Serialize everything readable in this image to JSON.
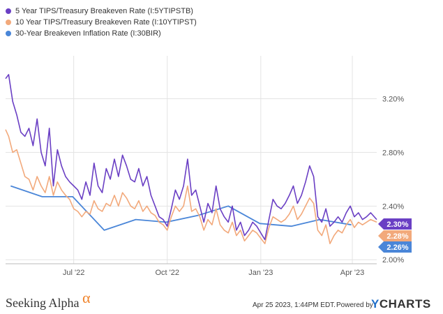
{
  "chart_data": {
    "type": "line",
    "xlabel": "",
    "ylabel": "",
    "x_ticks": [
      "Jul '22",
      "Oct '22",
      "Jan '23",
      "Apr '23"
    ],
    "y_ticks": [
      "2.00%",
      "2.40%",
      "2.80%",
      "3.20%"
    ],
    "ylim": [
      1.97,
      3.52
    ],
    "grid": true,
    "legend_position": "top-left",
    "series": [
      {
        "name": "5 Year TIPS/Treasury Breakeven Rate (I:5YTIPSTB)",
        "color": "#6a3fc4",
        "end_label": "2.30%",
        "x": [
          "2022-04-25",
          "2022-04-28",
          "2022-05-02",
          "2022-05-06",
          "2022-05-10",
          "2022-05-14",
          "2022-05-18",
          "2022-05-22",
          "2022-05-26",
          "2022-05-30",
          "2022-06-03",
          "2022-06-07",
          "2022-06-11",
          "2022-06-15",
          "2022-06-19",
          "2022-06-23",
          "2022-06-27",
          "2022-07-01",
          "2022-07-05",
          "2022-07-09",
          "2022-07-13",
          "2022-07-17",
          "2022-07-21",
          "2022-07-25",
          "2022-07-29",
          "2022-08-02",
          "2022-08-06",
          "2022-08-10",
          "2022-08-14",
          "2022-08-18",
          "2022-08-22",
          "2022-08-26",
          "2022-08-30",
          "2022-09-03",
          "2022-09-07",
          "2022-09-11",
          "2022-09-15",
          "2022-09-19",
          "2022-09-23",
          "2022-09-27",
          "2022-10-01",
          "2022-10-05",
          "2022-10-09",
          "2022-10-13",
          "2022-10-17",
          "2022-10-21",
          "2022-10-25",
          "2022-10-29",
          "2022-11-02",
          "2022-11-06",
          "2022-11-10",
          "2022-11-14",
          "2022-11-18",
          "2022-11-22",
          "2022-11-26",
          "2022-11-30",
          "2022-12-04",
          "2022-12-08",
          "2022-12-12",
          "2022-12-16",
          "2022-12-20",
          "2022-12-24",
          "2022-12-28",
          "2023-01-01",
          "2023-01-05",
          "2023-01-09",
          "2023-01-13",
          "2023-01-17",
          "2023-01-21",
          "2023-01-25",
          "2023-01-29",
          "2023-02-02",
          "2023-02-06",
          "2023-02-10",
          "2023-02-14",
          "2023-02-18",
          "2023-02-22",
          "2023-02-26",
          "2023-03-02",
          "2023-03-06",
          "2023-03-10",
          "2023-03-14",
          "2023-03-18",
          "2023-03-22",
          "2023-03-26",
          "2023-03-30",
          "2023-04-03",
          "2023-04-07",
          "2023-04-11",
          "2023-04-15",
          "2023-04-19",
          "2023-04-25"
        ],
        "y": [
          3.35,
          3.38,
          3.18,
          3.08,
          2.95,
          2.92,
          2.98,
          2.85,
          3.05,
          2.8,
          2.7,
          2.98,
          2.55,
          2.82,
          2.7,
          2.62,
          2.58,
          2.55,
          2.52,
          2.45,
          2.58,
          2.48,
          2.72,
          2.55,
          2.5,
          2.68,
          2.6,
          2.75,
          2.62,
          2.78,
          2.7,
          2.6,
          2.58,
          2.68,
          2.55,
          2.62,
          2.48,
          2.4,
          2.32,
          2.3,
          2.25,
          2.38,
          2.52,
          2.45,
          2.55,
          2.75,
          2.48,
          2.52,
          2.4,
          2.28,
          2.42,
          2.35,
          2.55,
          2.38,
          2.32,
          2.28,
          2.4,
          2.22,
          2.28,
          2.18,
          2.22,
          2.28,
          2.25,
          2.2,
          2.15,
          2.3,
          2.45,
          2.4,
          2.38,
          2.42,
          2.48,
          2.55,
          2.42,
          2.48,
          2.58,
          2.7,
          2.62,
          2.32,
          2.28,
          2.38,
          2.25,
          2.28,
          2.32,
          2.28,
          2.35,
          2.4,
          2.32,
          2.35,
          2.3,
          2.32,
          2.35,
          2.3
        ]
      },
      {
        "name": "10 Year TIPS/Treasury Breakeven Rate (I:10YTIPST)",
        "color": "#f2a97b",
        "end_label": "2.28%",
        "x": [
          "2022-04-25",
          "2022-04-28",
          "2022-05-02",
          "2022-05-06",
          "2022-05-10",
          "2022-05-14",
          "2022-05-18",
          "2022-05-22",
          "2022-05-26",
          "2022-05-30",
          "2022-06-03",
          "2022-06-07",
          "2022-06-11",
          "2022-06-15",
          "2022-06-19",
          "2022-06-23",
          "2022-06-27",
          "2022-07-01",
          "2022-07-05",
          "2022-07-09",
          "2022-07-13",
          "2022-07-17",
          "2022-07-21",
          "2022-07-25",
          "2022-07-29",
          "2022-08-02",
          "2022-08-06",
          "2022-08-10",
          "2022-08-14",
          "2022-08-18",
          "2022-08-22",
          "2022-08-26",
          "2022-08-30",
          "2022-09-03",
          "2022-09-07",
          "2022-09-11",
          "2022-09-15",
          "2022-09-19",
          "2022-09-23",
          "2022-09-27",
          "2022-10-01",
          "2022-10-05",
          "2022-10-09",
          "2022-10-13",
          "2022-10-17",
          "2022-10-21",
          "2022-10-25",
          "2022-10-29",
          "2022-11-02",
          "2022-11-06",
          "2022-11-10",
          "2022-11-14",
          "2022-11-18",
          "2022-11-22",
          "2022-11-26",
          "2022-11-30",
          "2022-12-04",
          "2022-12-08",
          "2022-12-12",
          "2022-12-16",
          "2022-12-20",
          "2022-12-24",
          "2022-12-28",
          "2023-01-01",
          "2023-01-05",
          "2023-01-09",
          "2023-01-13",
          "2023-01-17",
          "2023-01-21",
          "2023-01-25",
          "2023-01-29",
          "2023-02-02",
          "2023-02-06",
          "2023-02-10",
          "2023-02-14",
          "2023-02-18",
          "2023-02-22",
          "2023-02-26",
          "2023-03-02",
          "2023-03-06",
          "2023-03-10",
          "2023-03-14",
          "2023-03-18",
          "2023-03-22",
          "2023-03-26",
          "2023-03-30",
          "2023-04-03",
          "2023-04-07",
          "2023-04-11",
          "2023-04-15",
          "2023-04-19",
          "2023-04-25"
        ],
        "y": [
          2.97,
          2.92,
          2.8,
          2.82,
          2.72,
          2.62,
          2.6,
          2.52,
          2.62,
          2.55,
          2.5,
          2.62,
          2.48,
          2.58,
          2.52,
          2.48,
          2.45,
          2.38,
          2.36,
          2.32,
          2.36,
          2.34,
          2.44,
          2.38,
          2.36,
          2.42,
          2.4,
          2.48,
          2.4,
          2.5,
          2.46,
          2.4,
          2.38,
          2.44,
          2.36,
          2.4,
          2.35,
          2.33,
          2.28,
          2.26,
          2.22,
          2.32,
          2.4,
          2.36,
          2.4,
          2.55,
          2.36,
          2.38,
          2.32,
          2.22,
          2.3,
          2.26,
          2.38,
          2.26,
          2.22,
          2.2,
          2.28,
          2.18,
          2.22,
          2.14,
          2.18,
          2.22,
          2.2,
          2.16,
          2.12,
          2.24,
          2.32,
          2.3,
          2.28,
          2.3,
          2.34,
          2.4,
          2.3,
          2.34,
          2.4,
          2.46,
          2.42,
          2.22,
          2.18,
          2.26,
          2.12,
          2.18,
          2.22,
          2.2,
          2.26,
          2.3,
          2.24,
          2.28,
          2.26,
          2.28,
          2.3,
          2.28
        ]
      },
      {
        "name": "30-Year Breakeven Inflation Rate (I:30BIR)",
        "color": "#4a86d8",
        "end_label": "2.26%",
        "x": [
          "2022-04-30",
          "2022-05-31",
          "2022-06-30",
          "2022-07-31",
          "2022-08-31",
          "2022-09-30",
          "2022-10-31",
          "2022-11-30",
          "2022-12-31",
          "2023-01-31",
          "2023-02-28",
          "2023-03-31"
        ],
        "y": [
          2.55,
          2.47,
          2.47,
          2.22,
          2.3,
          2.28,
          2.33,
          2.4,
          2.27,
          2.25,
          2.3,
          2.26
        ]
      }
    ]
  },
  "footer": {
    "brand": "Seeking Alpha",
    "brand_symbol": "α",
    "timestamp": "Apr 25 2023, 1:44PM EDT.",
    "powered_by": "Powered by",
    "ycharts_y": "Y",
    "ycharts_rest": "CHARTS"
  }
}
